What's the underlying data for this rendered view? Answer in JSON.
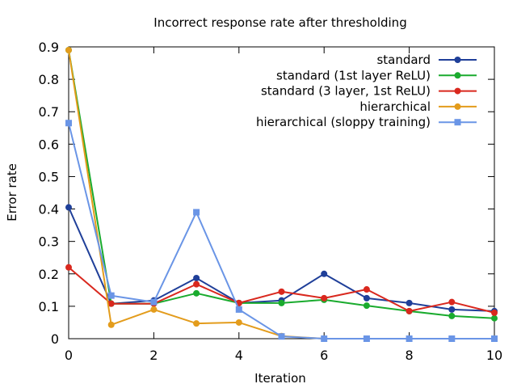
{
  "chart_data": {
    "type": "line",
    "title": "Incorrect response rate after thresholding",
    "xlabel": "Iteration",
    "ylabel": "Error rate",
    "xlim": [
      0,
      10
    ],
    "ylim": [
      0,
      0.9
    ],
    "xticks": [
      0,
      2,
      4,
      6,
      8,
      10
    ],
    "yticks": [
      0,
      0.1,
      0.2,
      0.3,
      0.4,
      0.5,
      0.6,
      0.7,
      0.8,
      0.9
    ],
    "grid": false,
    "legend_position": "top-right",
    "x": [
      0,
      1,
      2,
      3,
      4,
      5,
      6,
      7,
      8,
      9,
      10
    ],
    "series": [
      {
        "name": "standard",
        "color": "#1f3f99",
        "marker": "circle",
        "values": [
          0.405,
          0.108,
          0.118,
          0.187,
          0.11,
          0.118,
          0.2,
          0.125,
          0.11,
          0.09,
          0.085
        ]
      },
      {
        "name": "standard (1st layer ReLU)",
        "color": "#1aab2e",
        "marker": "circle",
        "values": [
          0.89,
          0.108,
          0.108,
          0.14,
          0.11,
          0.11,
          0.12,
          0.102,
          0.085,
          0.07,
          0.063
        ]
      },
      {
        "name": "standard (3 layer, 1st ReLU)",
        "color": "#d9281e",
        "marker": "circle",
        "values": [
          0.22,
          0.108,
          0.108,
          0.168,
          0.11,
          0.145,
          0.125,
          0.152,
          0.085,
          0.113,
          0.08
        ]
      },
      {
        "name": "hierarchical",
        "color": "#e39c1c",
        "marker": "circle",
        "values": [
          0.89,
          0.043,
          0.09,
          0.047,
          0.05,
          0.008,
          0.0,
          0.0,
          0.0,
          0.0,
          0.0
        ]
      },
      {
        "name": "hierarchical (sloppy training)",
        "color": "#6a95e6",
        "marker": "square",
        "values": [
          0.665,
          0.133,
          0.113,
          0.39,
          0.09,
          0.007,
          0.0,
          0.0,
          0.0,
          0.0,
          0.0
        ]
      }
    ]
  }
}
